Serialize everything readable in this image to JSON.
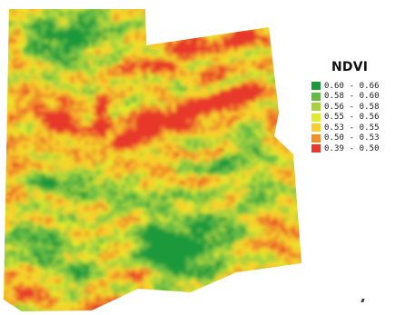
{
  "map": {
    "type": "ndvi-field-map",
    "classes": [
      {
        "range": "0.60 - 0.66",
        "color": "#1a9a3a"
      },
      {
        "range": "0.58 - 0.60",
        "color": "#66bb44"
      },
      {
        "range": "0.56 - 0.58",
        "color": "#a6d13c"
      },
      {
        "range": "0.55 - 0.56",
        "color": "#e2ea2c"
      },
      {
        "range": "0.53 - 0.55",
        "color": "#f7cf2a"
      },
      {
        "range": "0.50 - 0.53",
        "color": "#f08f2a"
      },
      {
        "range": "0.39 - 0.50",
        "color": "#e8382c"
      }
    ]
  },
  "legend": {
    "title": "NDVI",
    "items": [
      {
        "label": "0.60 - 0.66",
        "color": "#1a9a3a"
      },
      {
        "label": "0.58 - 0.60",
        "color": "#66bb44"
      },
      {
        "label": "0.56 - 0.58",
        "color": "#a6d13c"
      },
      {
        "label": "0.55 - 0.56",
        "color": "#e2ea2c"
      },
      {
        "label": "0.53 - 0.55",
        "color": "#f7cf2a"
      },
      {
        "label": "0.50 - 0.53",
        "color": "#f08f2a"
      },
      {
        "label": "0.39 - 0.50",
        "color": "#e8382c"
      }
    ]
  }
}
